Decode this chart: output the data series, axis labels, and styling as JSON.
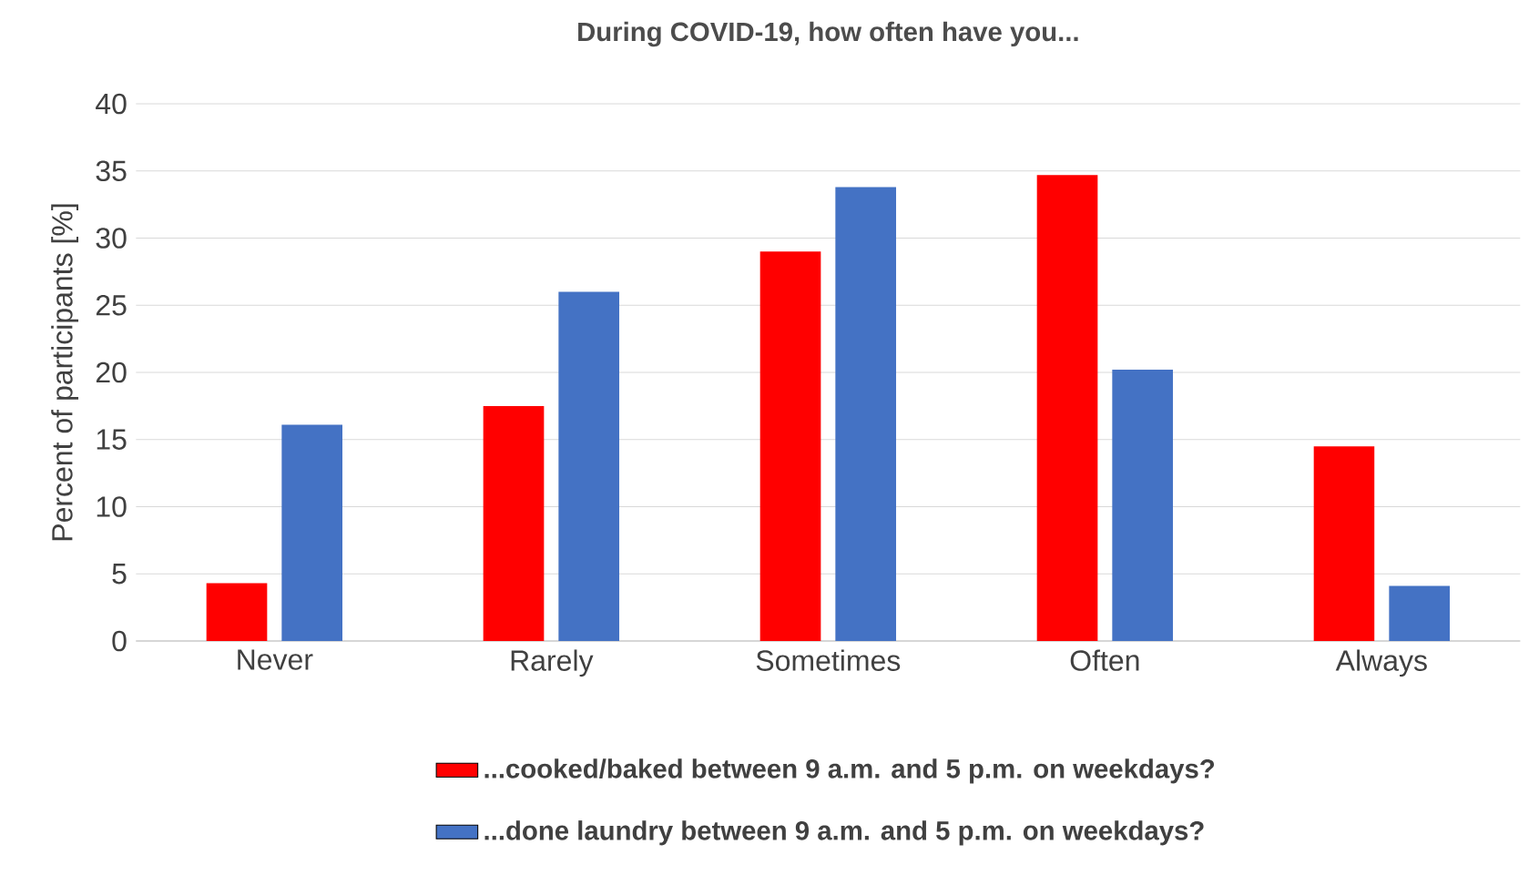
{
  "chart_data": {
    "type": "bar",
    "title": "During COVID-19, how often have you...",
    "ylabel": "Percent of participants [%]",
    "categories": [
      "Never",
      "Rarely",
      "Sometimes",
      "Often",
      "Always"
    ],
    "series": [
      {
        "name": "...cooked/baked between 9 a.m. and 5 p.m. on weekdays?",
        "color": "#ff0000",
        "values": [
          4.3,
          17.5,
          29,
          34.7,
          14.5
        ]
      },
      {
        "name": "...done laundry between 9 a.m. and 5 p.m. on weekdays?",
        "color": "#4472c4",
        "values": [
          16.1,
          26,
          33.8,
          20.2,
          4.1
        ]
      }
    ],
    "ylim": [
      0,
      40
    ],
    "yticks": [
      0,
      5,
      10,
      15,
      20,
      25,
      30,
      35,
      40
    ],
    "grid": "y",
    "legend": "bottom"
  }
}
